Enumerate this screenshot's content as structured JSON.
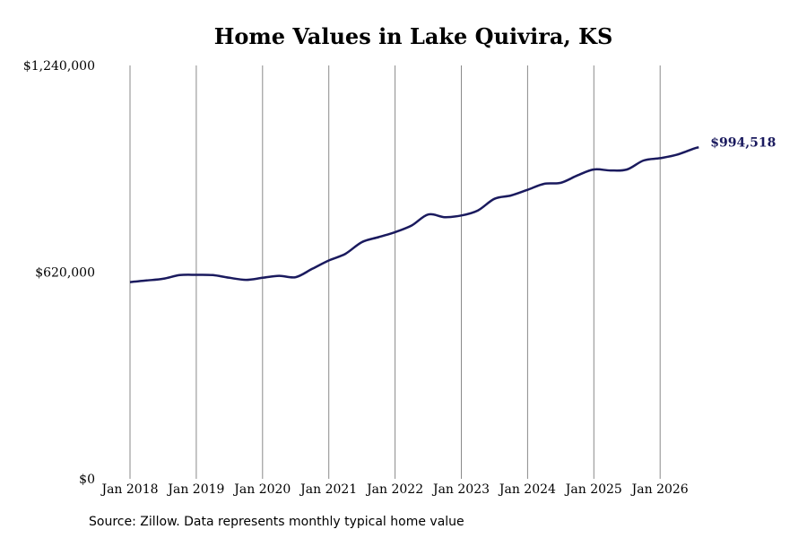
{
  "chart_data": {
    "type": "line",
    "title": "Home Values in Lake Quivira, KS",
    "xlabel": "",
    "ylabel": "",
    "x_tick_labels": [
      "Jan 2018",
      "Jan 2019",
      "Jan 2020",
      "Jan 2021",
      "Jan 2022",
      "Jan 2023",
      "Jan 2024",
      "Jan 2025",
      "Jan 2026"
    ],
    "y_tick_labels": [
      "$0",
      "$620,000",
      "$1,240,000"
    ],
    "ylim": [
      0,
      1240000
    ],
    "grid": "vertical lines at each January",
    "legend": "none",
    "line_color": "#1a1a5e",
    "end_label": "$994,518",
    "series": [
      {
        "values": [
          {
            "x": "2018-01",
            "y": 590000
          },
          {
            "x": "2018-04",
            "y": 595000
          },
          {
            "x": "2018-07",
            "y": 600000
          },
          {
            "x": "2018-10",
            "y": 611000
          },
          {
            "x": "2019-01",
            "y": 612000
          },
          {
            "x": "2019-04",
            "y": 611000
          },
          {
            "x": "2019-07",
            "y": 603000
          },
          {
            "x": "2019-10",
            "y": 597000
          },
          {
            "x": "2020-01",
            "y": 603000
          },
          {
            "x": "2020-04",
            "y": 609000
          },
          {
            "x": "2020-07",
            "y": 605000
          },
          {
            "x": "2020-10",
            "y": 630000
          },
          {
            "x": "2021-01",
            "y": 655000
          },
          {
            "x": "2021-04",
            "y": 675000
          },
          {
            "x": "2021-07",
            "y": 710000
          },
          {
            "x": "2021-10",
            "y": 725000
          },
          {
            "x": "2022-01",
            "y": 740000
          },
          {
            "x": "2022-04",
            "y": 760000
          },
          {
            "x": "2022-07",
            "y": 793000
          },
          {
            "x": "2022-10",
            "y": 785000
          },
          {
            "x": "2023-01",
            "y": 790000
          },
          {
            "x": "2023-04",
            "y": 805000
          },
          {
            "x": "2023-07",
            "y": 840000
          },
          {
            "x": "2023-10",
            "y": 850000
          },
          {
            "x": "2024-01",
            "y": 867000
          },
          {
            "x": "2024-04",
            "y": 885000
          },
          {
            "x": "2024-07",
            "y": 888000
          },
          {
            "x": "2024-10",
            "y": 910000
          },
          {
            "x": "2025-01",
            "y": 928000
          },
          {
            "x": "2025-04",
            "y": 925000
          },
          {
            "x": "2025-07",
            "y": 928000
          },
          {
            "x": "2025-10",
            "y": 955000
          },
          {
            "x": "2026-01",
            "y": 962000
          },
          {
            "x": "2026-04",
            "y": 972000
          },
          {
            "x": "2026-07",
            "y": 990000
          },
          {
            "x": "2026-08",
            "y": 994518
          }
        ]
      }
    ]
  },
  "footer": {
    "source": "Source: Zillow. Data represents monthly typical home value"
  }
}
